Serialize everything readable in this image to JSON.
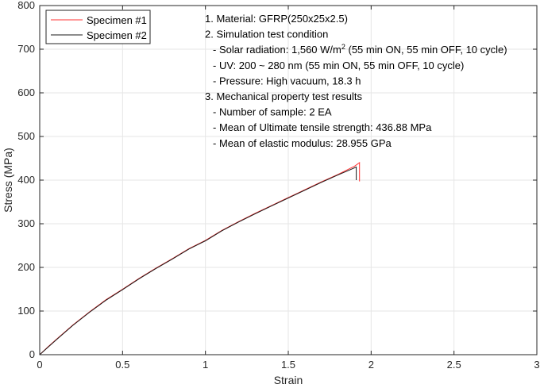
{
  "chart_data": {
    "type": "line",
    "xlabel": "Strain",
    "ylabel": "Stress (MPa)",
    "xlim": [
      0,
      3
    ],
    "ylim": [
      0,
      800
    ],
    "x_ticks": [
      "0",
      "0.5",
      "1",
      "1.5",
      "2",
      "2.5",
      "3"
    ],
    "y_ticks": [
      "0",
      "100",
      "200",
      "300",
      "400",
      "500",
      "600",
      "700",
      "800"
    ],
    "grid": true,
    "legend_position": "top-left",
    "colors": {
      "Specimen #1": "#ff3333",
      "Specimen #2": "#1a1a1a"
    },
    "series": [
      {
        "name": "Specimen #1",
        "x": [
          0,
          0.05,
          0.1,
          0.2,
          0.3,
          0.4,
          0.5,
          0.6,
          0.7,
          0.8,
          0.9,
          1.0,
          1.1,
          1.2,
          1.3,
          1.4,
          1.5,
          1.6,
          1.7,
          1.8,
          1.9,
          1.93,
          1.93
        ],
        "values": [
          0,
          18,
          35,
          68,
          98,
          126,
          150,
          175,
          198,
          220,
          243,
          262,
          285,
          305,
          324,
          342,
          360,
          378,
          396,
          413,
          432,
          440,
          397
        ]
      },
      {
        "name": "Specimen #2",
        "x": [
          0,
          0.05,
          0.1,
          0.2,
          0.3,
          0.4,
          0.5,
          0.6,
          0.7,
          0.8,
          0.9,
          1.0,
          1.1,
          1.2,
          1.3,
          1.4,
          1.5,
          1.6,
          1.7,
          1.8,
          1.88,
          1.91,
          1.91
        ],
        "values": [
          0,
          17,
          34,
          67,
          97,
          125,
          149,
          174,
          197,
          219,
          242,
          261,
          284,
          304,
          323,
          341,
          359,
          377,
          395,
          412,
          425,
          430,
          400
        ]
      }
    ],
    "annotations": [
      {
        "text": "1. Material: GFRP(250x25x2.5)"
      },
      {
        "text": "2. Simulation test condition"
      },
      {
        "text": "- Solar radiation: 1,560 W/m",
        "sup": "2",
        "after": " (55 min ON, 55 min OFF, 10 cycle)"
      },
      {
        "text": "- UV: 200 ~ 280 nm (55 min ON, 55 min OFF, 10 cycle)"
      },
      {
        "text": "- Pressure: High vacuum, 18.3 h"
      },
      {
        "text": "3. Mechanical property test results"
      },
      {
        "text": "- Number of sample: 2 EA"
      },
      {
        "text": "- Mean of Ultimate tensile strength: 436.88 MPa"
      },
      {
        "text": "- Mean of elastic modulus: 28.955 GPa"
      }
    ]
  }
}
